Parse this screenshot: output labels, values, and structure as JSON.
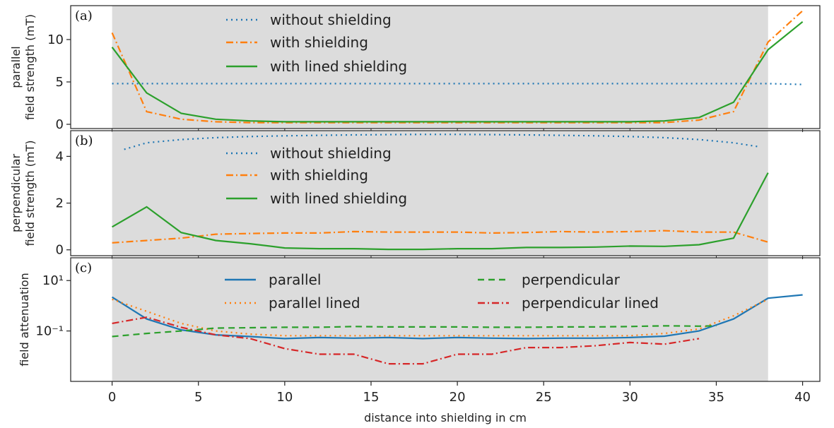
{
  "chart_data": [
    {
      "type": "line",
      "panel_label": "(a)",
      "ylabel": [
        "parallel",
        "field strength (mT)"
      ],
      "xlim": [
        -2.4,
        41
      ],
      "ylim": [
        -0.5,
        14
      ],
      "yticks": [
        0,
        5,
        10
      ],
      "shaded_x_range": [
        0,
        38
      ],
      "legend": "top-center",
      "series": [
        {
          "name": "without shielding",
          "style": "dotted",
          "color": "#1f77b4",
          "x": [
            0,
            2,
            4,
            6,
            8,
            10,
            12,
            14,
            16,
            18,
            20,
            22,
            24,
            26,
            28,
            30,
            32,
            34,
            36,
            38,
            40
          ],
          "y": [
            4.8,
            4.8,
            4.8,
            4.8,
            4.8,
            4.8,
            4.8,
            4.8,
            4.8,
            4.8,
            4.8,
            4.8,
            4.8,
            4.8,
            4.8,
            4.8,
            4.8,
            4.8,
            4.8,
            4.8,
            4.7
          ]
        },
        {
          "name": "with shielding",
          "style": "dashdot",
          "color": "#ff7f0e",
          "x": [
            0,
            2,
            4,
            6,
            8,
            10,
            12,
            14,
            16,
            18,
            20,
            22,
            24,
            26,
            28,
            30,
            32,
            34,
            36,
            38,
            40
          ],
          "y": [
            10.8,
            1.5,
            0.6,
            0.3,
            0.2,
            0.2,
            0.2,
            0.2,
            0.2,
            0.2,
            0.2,
            0.2,
            0.2,
            0.2,
            0.2,
            0.2,
            0.2,
            0.5,
            1.5,
            9.7,
            13.4
          ]
        },
        {
          "name": "with lined shielding",
          "style": "solid",
          "color": "#2ca02c",
          "x": [
            0,
            2,
            4,
            6,
            8,
            10,
            12,
            14,
            16,
            18,
            20,
            22,
            24,
            26,
            28,
            30,
            32,
            34,
            36,
            38,
            40
          ],
          "y": [
            9.1,
            3.7,
            1.3,
            0.6,
            0.4,
            0.3,
            0.3,
            0.3,
            0.3,
            0.3,
            0.3,
            0.3,
            0.3,
            0.3,
            0.3,
            0.3,
            0.4,
            0.8,
            2.6,
            8.8,
            12.1
          ]
        }
      ]
    },
    {
      "type": "line",
      "panel_label": "(b)",
      "ylabel": [
        "perpendicular",
        "field strength (mT)"
      ],
      "xlim": [
        -2.4,
        41
      ],
      "ylim": [
        -0.25,
        5.1
      ],
      "yticks": [
        0,
        2,
        4
      ],
      "shaded_x_range": [
        0,
        38
      ],
      "legend": "top-center",
      "series": [
        {
          "name": "without shielding",
          "style": "dotted",
          "color": "#1f77b4",
          "x": [
            0.7,
            2,
            4,
            6,
            8,
            10,
            12,
            14,
            16,
            18,
            20,
            22,
            24,
            26,
            28,
            30,
            32,
            34,
            36,
            37.4
          ],
          "y": [
            4.3,
            4.58,
            4.72,
            4.8,
            4.85,
            4.88,
            4.9,
            4.92,
            4.93,
            4.94,
            4.94,
            4.93,
            4.92,
            4.9,
            4.88,
            4.85,
            4.8,
            4.72,
            4.58,
            4.42
          ]
        },
        {
          "name": "with shielding",
          "style": "dashdot",
          "color": "#ff7f0e",
          "x": [
            0,
            2,
            4,
            6,
            8,
            10,
            12,
            14,
            16,
            18,
            20,
            22,
            24,
            26,
            28,
            30,
            32,
            34,
            36,
            38
          ],
          "y": [
            0.3,
            0.4,
            0.5,
            0.67,
            0.7,
            0.72,
            0.72,
            0.78,
            0.76,
            0.76,
            0.76,
            0.72,
            0.74,
            0.78,
            0.76,
            0.78,
            0.82,
            0.76,
            0.76,
            0.33
          ]
        },
        {
          "name": "with lined shielding",
          "style": "solid",
          "color": "#2ca02c",
          "x": [
            0,
            2,
            4,
            6,
            8,
            10,
            12,
            14,
            16,
            18,
            20,
            22,
            24,
            26,
            28,
            30,
            32,
            34,
            36,
            38
          ],
          "y": [
            0.98,
            1.84,
            0.74,
            0.4,
            0.26,
            0.08,
            0.05,
            0.05,
            0.02,
            0.02,
            0.05,
            0.05,
            0.1,
            0.1,
            0.12,
            0.16,
            0.15,
            0.22,
            0.5,
            3.3
          ]
        }
      ]
    },
    {
      "type": "line",
      "panel_label": "(c)",
      "ylabel": "field attenuation",
      "xlabel": "distance into shielding in cm",
      "scale_y": "log",
      "xlim": [
        -2.4,
        41
      ],
      "ylim": [
        0.001,
        80
      ],
      "ytick_labels": [
        {
          "value": 10,
          "text": "10¹"
        },
        {
          "value": 0.1,
          "text": "10⁻¹"
        }
      ],
      "xticks": [
        0,
        5,
        10,
        15,
        20,
        25,
        30,
        35,
        40
      ],
      "shaded_x_range": [
        0,
        38
      ],
      "legend": "top-center, two columns",
      "series": [
        {
          "name": "parallel",
          "style": "solid",
          "color": "#1f77b4",
          "x": [
            0,
            2,
            4,
            6,
            8,
            10,
            12,
            14,
            16,
            18,
            20,
            22,
            24,
            26,
            28,
            30,
            32,
            34,
            36,
            38,
            40
          ],
          "y": [
            2.2,
            0.3,
            0.11,
            0.07,
            0.06,
            0.05,
            0.055,
            0.052,
            0.055,
            0.05,
            0.055,
            0.052,
            0.05,
            0.052,
            0.052,
            0.055,
            0.062,
            0.1,
            0.3,
            2.0,
            2.7
          ]
        },
        {
          "name": "parallel lined",
          "style": "dotted",
          "color": "#ff7f0e",
          "x": [
            0,
            2,
            4,
            6,
            8,
            10,
            12,
            14,
            16,
            18,
            20,
            22,
            24,
            26,
            28,
            30,
            32,
            34,
            36,
            38
          ],
          "y": [
            1.8,
            0.6,
            0.2,
            0.1,
            0.075,
            0.065,
            0.065,
            0.065,
            0.065,
            0.065,
            0.065,
            0.065,
            0.065,
            0.065,
            0.065,
            0.065,
            0.08,
            0.12,
            0.4,
            1.8
          ]
        },
        {
          "name": "perpendicular",
          "style": "dashed",
          "color": "#2ca02c",
          "x": [
            0,
            2,
            4,
            6,
            8,
            10,
            12,
            14,
            16,
            18,
            20,
            22,
            24,
            26,
            28,
            30,
            32,
            34,
            35
          ],
          "y": [
            0.06,
            0.08,
            0.1,
            0.13,
            0.135,
            0.14,
            0.14,
            0.15,
            0.145,
            0.145,
            0.145,
            0.14,
            0.14,
            0.145,
            0.145,
            0.15,
            0.16,
            0.155,
            0.16
          ]
        },
        {
          "name": "perpendicular lined",
          "style": "dashdot",
          "color": "#d62728",
          "x": [
            0,
            2,
            4,
            6,
            8,
            10,
            12,
            14,
            16,
            18,
            20,
            22,
            24,
            26,
            28,
            30,
            32,
            34
          ],
          "y": [
            0.2,
            0.35,
            0.14,
            0.07,
            0.05,
            0.02,
            0.012,
            0.012,
            0.005,
            0.005,
            0.012,
            0.012,
            0.022,
            0.022,
            0.026,
            0.035,
            0.03,
            0.05
          ]
        }
      ]
    }
  ]
}
